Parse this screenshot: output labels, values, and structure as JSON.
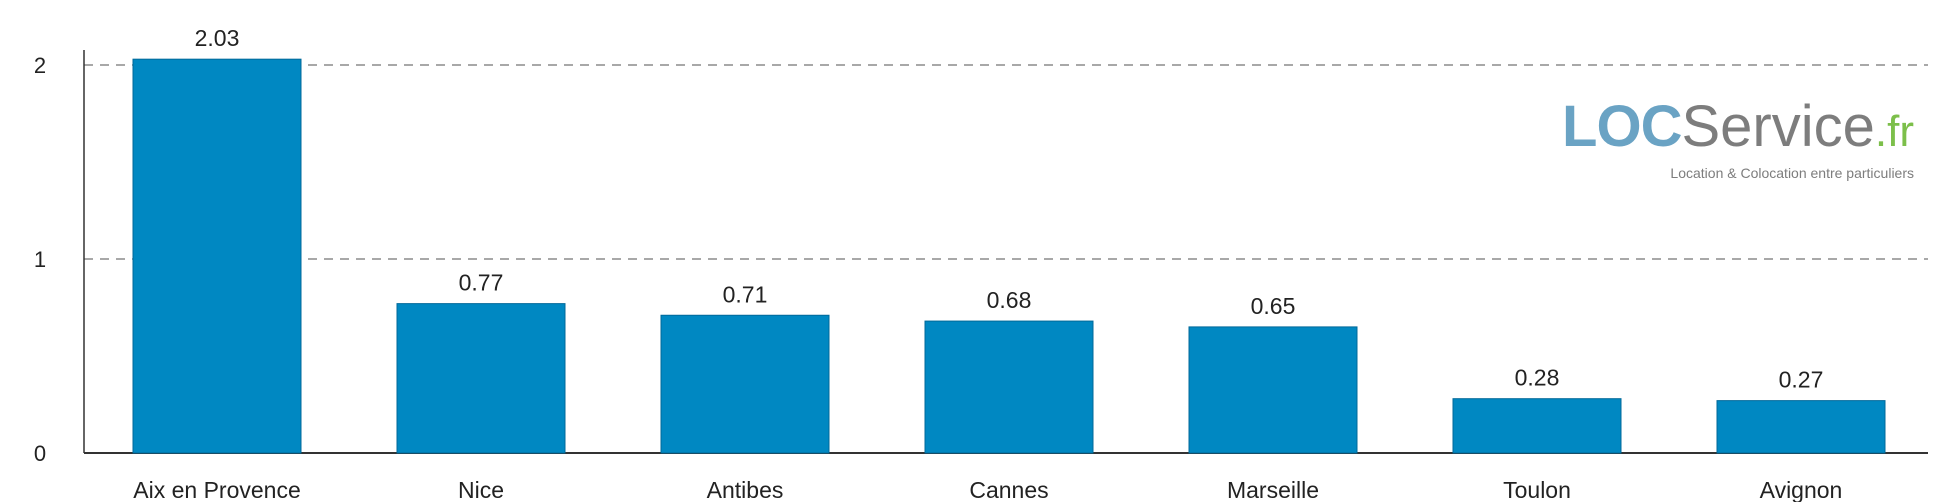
{
  "chart_data": {
    "type": "bar",
    "categories": [
      "Aix en Provence",
      "Nice",
      "Antibes",
      "Cannes",
      "Marseille",
      "Toulon",
      "Avignon"
    ],
    "values": [
      2.03,
      0.77,
      0.71,
      0.68,
      0.65,
      0.28,
      0.27
    ],
    "value_labels": [
      "2.03",
      "0.77",
      "0.71",
      "0.68",
      "0.65",
      "0.28",
      "0.27"
    ],
    "yticks": [
      0,
      1,
      2
    ],
    "ylim": [
      0,
      2.1
    ],
    "grid": "dashed horizontal",
    "bar_color": "#0088c2",
    "title": "",
    "xlabel": "",
    "ylabel": ""
  },
  "logo": {
    "loc": "LOC",
    "service": "Service",
    "tld": "fr",
    "tld_dot": ".",
    "tagline": "Location & Colocation entre particuliers",
    "colors": {
      "loc": "#6aa3c4",
      "service": "#7d7d7d",
      "tld": "#7cbf4a"
    }
  }
}
